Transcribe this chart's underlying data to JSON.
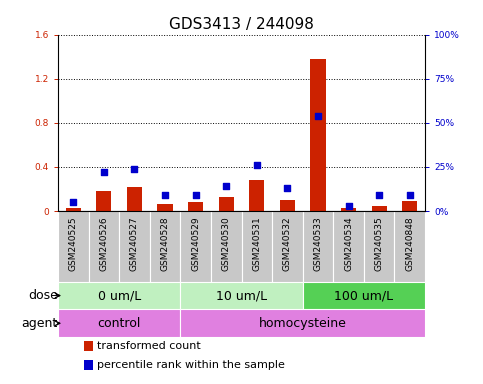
{
  "title": "GDS3413 / 244098",
  "samples": [
    "GSM240525",
    "GSM240526",
    "GSM240527",
    "GSM240528",
    "GSM240529",
    "GSM240530",
    "GSM240531",
    "GSM240532",
    "GSM240533",
    "GSM240534",
    "GSM240535",
    "GSM240848"
  ],
  "transformed_count": [
    0.03,
    0.18,
    0.22,
    0.06,
    0.08,
    0.13,
    0.28,
    0.1,
    1.38,
    0.03,
    0.05,
    0.09
  ],
  "percentile_rank_pct": [
    5,
    22,
    24,
    9,
    9,
    14,
    26,
    13,
    54,
    3,
    9,
    9
  ],
  "ylim_left": [
    0,
    1.6
  ],
  "ylim_right": [
    0,
    100
  ],
  "yticks_left": [
    0,
    0.4,
    0.8,
    1.2,
    1.6
  ],
  "yticks_right": [
    0,
    25,
    50,
    75,
    100
  ],
  "ytick_labels_left": [
    "0",
    "0.4",
    "0.8",
    "1.2",
    "1.6"
  ],
  "ytick_labels_right": [
    "0%",
    "25%",
    "50%",
    "75%",
    "100%"
  ],
  "dose_groups": [
    {
      "label": "0 um/L",
      "start": 0,
      "end": 4,
      "color": "#c0f0c0"
    },
    {
      "label": "10 um/L",
      "start": 4,
      "end": 8,
      "color": "#c0f0c0"
    },
    {
      "label": "100 um/L",
      "start": 8,
      "end": 12,
      "color": "#55d055"
    }
  ],
  "agent_groups": [
    {
      "label": "control",
      "start": 0,
      "end": 4,
      "color": "#e080e0"
    },
    {
      "label": "homocysteine",
      "start": 4,
      "end": 12,
      "color": "#e080e0"
    }
  ],
  "bar_color": "#cc2200",
  "dot_color": "#0000cc",
  "bar_width": 0.5,
  "dot_size": 18,
  "label_bg_color": "#c8c8c8",
  "plot_bg_color": "#ffffff",
  "title_fontsize": 11,
  "tick_fontsize": 6.5,
  "row_label_fontsize": 9,
  "group_label_fontsize": 9,
  "legend_fontsize": 8
}
